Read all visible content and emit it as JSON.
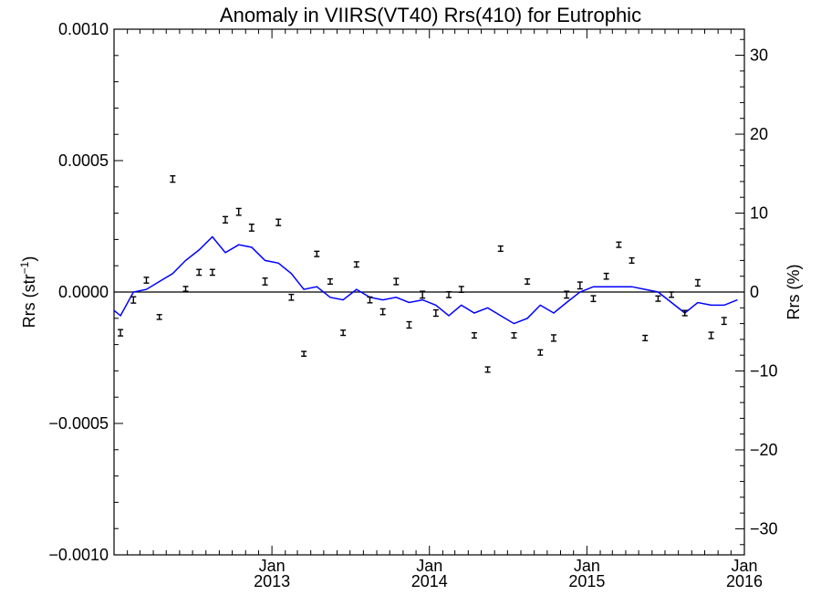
{
  "chart_data": {
    "type": "scatter",
    "title": "Anomaly in VIIRS(VT40) Rrs(410) for Eutrophic",
    "ylabel_main": "Rrs (str",
    "ylabel_sup": "−1",
    "ylabel_close": ")",
    "ylabel_right": "Rrs (%)",
    "ylim": [
      -0.001,
      0.001
    ],
    "ylim_right": [
      -33.3,
      33.3
    ],
    "xlim": [
      "2012-01-01",
      "2016-01-01"
    ],
    "yticks": [
      {
        "value": 0.001,
        "label": "0.0010"
      },
      {
        "value": 0.0005,
        "label": "0.0005"
      },
      {
        "value": 0.0,
        "label": "0.0000"
      },
      {
        "value": -0.0005,
        "label": "−0.0005"
      },
      {
        "value": -0.001,
        "label": "−0.0010"
      }
    ],
    "yticks_right": [
      {
        "value": 30,
        "label": "30"
      },
      {
        "value": 20,
        "label": "20"
      },
      {
        "value": 10,
        "label": "10"
      },
      {
        "value": 0,
        "label": "0"
      },
      {
        "value": -10,
        "label": "−10"
      },
      {
        "value": -20,
        "label": "−20"
      },
      {
        "value": -30,
        "label": "−30"
      }
    ],
    "xticks": [
      {
        "date": "2013-01-01",
        "month": "Jan",
        "year": "2013"
      },
      {
        "date": "2014-01-01",
        "month": "Jan",
        "year": "2014"
      },
      {
        "date": "2015-01-01",
        "month": "Jan",
        "year": "2015"
      },
      {
        "date": "2016-01-01",
        "month": "Jan",
        "year": "2016"
      }
    ],
    "zero_line": 0,
    "series": [
      {
        "kind": "errorbar",
        "color": "#000000",
        "points": [
          {
            "x": "2012-01-16",
            "y": -0.000155,
            "err": 1.2e-05
          },
          {
            "x": "2012-02-15",
            "y": -3e-05,
            "err": 1.2e-05
          },
          {
            "x": "2012-03-16",
            "y": 4.5e-05,
            "err": 1.1e-05
          },
          {
            "x": "2012-04-15",
            "y": -9.5e-05,
            "err": 9e-06
          },
          {
            "x": "2012-05-16",
            "y": 0.00043,
            "err": 1.2e-05
          },
          {
            "x": "2012-06-15",
            "y": 1.2e-05,
            "err": 9e-06
          },
          {
            "x": "2012-07-16",
            "y": 7.5e-05,
            "err": 1.1e-05
          },
          {
            "x": "2012-08-16",
            "y": 7.5e-05,
            "err": 1.1e-05
          },
          {
            "x": "2012-09-15",
            "y": 0.000275,
            "err": 1.2e-05
          },
          {
            "x": "2012-10-16",
            "y": 0.000305,
            "err": 1.3e-05
          },
          {
            "x": "2012-11-15",
            "y": 0.000245,
            "err": 1.3e-05
          },
          {
            "x": "2012-12-16",
            "y": 4e-05,
            "err": 1.3e-05
          },
          {
            "x": "2013-01-16",
            "y": 0.000265,
            "err": 1.2e-05
          },
          {
            "x": "2013-02-15",
            "y": -2e-05,
            "err": 1.1e-05
          },
          {
            "x": "2013-03-16",
            "y": -0.000235,
            "err": 9e-06
          },
          {
            "x": "2013-04-15",
            "y": 0.000145,
            "err": 1e-05
          },
          {
            "x": "2013-05-16",
            "y": 4e-05,
            "err": 1e-05
          },
          {
            "x": "2013-06-15",
            "y": -0.000155,
            "err": 1e-05
          },
          {
            "x": "2013-07-16",
            "y": 0.000105,
            "err": 1e-05
          },
          {
            "x": "2013-08-16",
            "y": -3e-05,
            "err": 1.1e-05
          },
          {
            "x": "2013-09-15",
            "y": -7.5e-05,
            "err": 1.1e-05
          },
          {
            "x": "2013-10-16",
            "y": 4e-05,
            "err": 1.2e-05
          },
          {
            "x": "2013-11-15",
            "y": -0.000125,
            "err": 1.2e-05
          },
          {
            "x": "2013-12-16",
            "y": -1e-05,
            "err": 1.3e-05
          },
          {
            "x": "2014-01-16",
            "y": -8e-05,
            "err": 1.2e-05
          },
          {
            "x": "2014-02-15",
            "y": -1e-05,
            "err": 1.1e-05
          },
          {
            "x": "2014-03-16",
            "y": 1e-05,
            "err": 1.1e-05
          },
          {
            "x": "2014-04-15",
            "y": -0.000165,
            "err": 1e-05
          },
          {
            "x": "2014-05-16",
            "y": -0.000295,
            "err": 1e-05
          },
          {
            "x": "2014-06-15",
            "y": 0.000165,
            "err": 1e-05
          },
          {
            "x": "2014-07-16",
            "y": -0.000165,
            "err": 1e-05
          },
          {
            "x": "2014-08-16",
            "y": 4e-05,
            "err": 1e-05
          },
          {
            "x": "2014-09-15",
            "y": -0.00023,
            "err": 1e-05
          },
          {
            "x": "2014-10-16",
            "y": -0.000175,
            "err": 1.2e-05
          },
          {
            "x": "2014-11-15",
            "y": -1e-05,
            "err": 1.3e-05
          },
          {
            "x": "2014-12-16",
            "y": 2.5e-05,
            "err": 1.3e-05
          },
          {
            "x": "2015-01-16",
            "y": -2.5e-05,
            "err": 1.1e-05
          },
          {
            "x": "2015-02-15",
            "y": 6e-05,
            "err": 1.1e-05
          },
          {
            "x": "2015-03-16",
            "y": 0.00018,
            "err": 1e-05
          },
          {
            "x": "2015-04-15",
            "y": 0.00012,
            "err": 1e-05
          },
          {
            "x": "2015-05-16",
            "y": -0.000175,
            "err": 1e-05
          },
          {
            "x": "2015-06-15",
            "y": -2.5e-05,
            "err": 1e-05
          },
          {
            "x": "2015-07-16",
            "y": -1e-05,
            "err": 1e-05
          },
          {
            "x": "2015-08-16",
            "y": -8e-05,
            "err": 1e-05
          },
          {
            "x": "2015-09-15",
            "y": 3.5e-05,
            "err": 1.2e-05
          },
          {
            "x": "2015-10-16",
            "y": -0.000165,
            "err": 1.2e-05
          },
          {
            "x": "2015-11-15",
            "y": -0.00011,
            "err": 1.3e-05
          }
        ]
      },
      {
        "kind": "line",
        "color": "#0000ff",
        "points": [
          {
            "x": "2012-01-01",
            "y": -7e-05
          },
          {
            "x": "2012-01-16",
            "y": -9e-05
          },
          {
            "x": "2012-02-15",
            "y": 0.0
          },
          {
            "x": "2012-03-16",
            "y": 1e-05
          },
          {
            "x": "2012-04-15",
            "y": 4e-05
          },
          {
            "x": "2012-05-16",
            "y": 7e-05
          },
          {
            "x": "2012-06-15",
            "y": 0.00012
          },
          {
            "x": "2012-07-16",
            "y": 0.00016
          },
          {
            "x": "2012-08-16",
            "y": 0.00021
          },
          {
            "x": "2012-09-15",
            "y": 0.00015
          },
          {
            "x": "2012-10-16",
            "y": 0.00018
          },
          {
            "x": "2012-11-15",
            "y": 0.00017
          },
          {
            "x": "2012-12-16",
            "y": 0.00012
          },
          {
            "x": "2013-01-16",
            "y": 0.00011
          },
          {
            "x": "2013-02-15",
            "y": 7e-05
          },
          {
            "x": "2013-03-16",
            "y": 1e-05
          },
          {
            "x": "2013-04-15",
            "y": 2e-05
          },
          {
            "x": "2013-05-16",
            "y": -2e-05
          },
          {
            "x": "2013-06-15",
            "y": -3e-05
          },
          {
            "x": "2013-07-16",
            "y": 1e-05
          },
          {
            "x": "2013-08-16",
            "y": -2e-05
          },
          {
            "x": "2013-09-15",
            "y": -3e-05
          },
          {
            "x": "2013-10-16",
            "y": -2e-05
          },
          {
            "x": "2013-11-15",
            "y": -4e-05
          },
          {
            "x": "2013-12-16",
            "y": -3e-05
          },
          {
            "x": "2014-01-16",
            "y": -5e-05
          },
          {
            "x": "2014-02-15",
            "y": -9e-05
          },
          {
            "x": "2014-03-16",
            "y": -5e-05
          },
          {
            "x": "2014-04-15",
            "y": -8e-05
          },
          {
            "x": "2014-05-16",
            "y": -6e-05
          },
          {
            "x": "2014-06-15",
            "y": -9e-05
          },
          {
            "x": "2014-07-16",
            "y": -0.00012
          },
          {
            "x": "2014-08-16",
            "y": -0.0001
          },
          {
            "x": "2014-09-15",
            "y": -5e-05
          },
          {
            "x": "2014-10-16",
            "y": -8e-05
          },
          {
            "x": "2014-11-15",
            "y": -4e-05
          },
          {
            "x": "2014-12-16",
            "y": 0.0
          },
          {
            "x": "2015-01-16",
            "y": 2e-05
          },
          {
            "x": "2015-02-15",
            "y": 2e-05
          },
          {
            "x": "2015-03-16",
            "y": 2e-05
          },
          {
            "x": "2015-04-15",
            "y": 2e-05
          },
          {
            "x": "2015-05-16",
            "y": 1e-05
          },
          {
            "x": "2015-06-15",
            "y": 0.0
          },
          {
            "x": "2015-07-16",
            "y": -4e-05
          },
          {
            "x": "2015-08-16",
            "y": -8e-05
          },
          {
            "x": "2015-09-15",
            "y": -4e-05
          },
          {
            "x": "2015-10-16",
            "y": -5e-05
          },
          {
            "x": "2015-11-15",
            "y": -5e-05
          },
          {
            "x": "2015-12-16",
            "y": -3e-05
          }
        ]
      }
    ],
    "grid": false,
    "legend": "none"
  }
}
